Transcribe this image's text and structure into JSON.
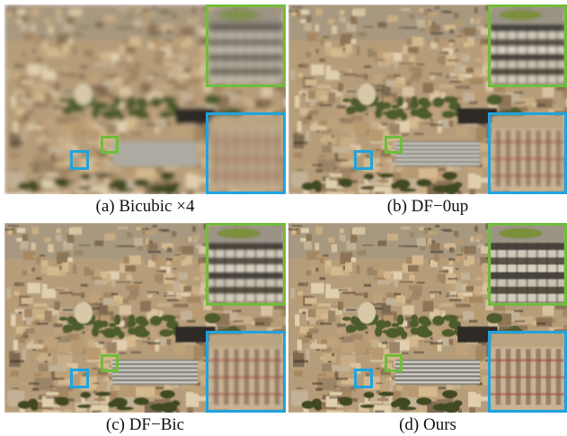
{
  "figure": {
    "panels": [
      {
        "id": "a",
        "caption": "(a) Bicubic ×4",
        "blur": 2.4
      },
      {
        "id": "b",
        "caption": "(b) DF−0up",
        "blur": 1.1
      },
      {
        "id": "c",
        "caption": "(c) DF−Bic",
        "blur": 0.8
      },
      {
        "id": "d",
        "caption": "(d) Ours",
        "blur": 0.4
      }
    ],
    "colors": {
      "green_box": "#6fbd3b",
      "blue_box": "#1fa3e0"
    }
  }
}
